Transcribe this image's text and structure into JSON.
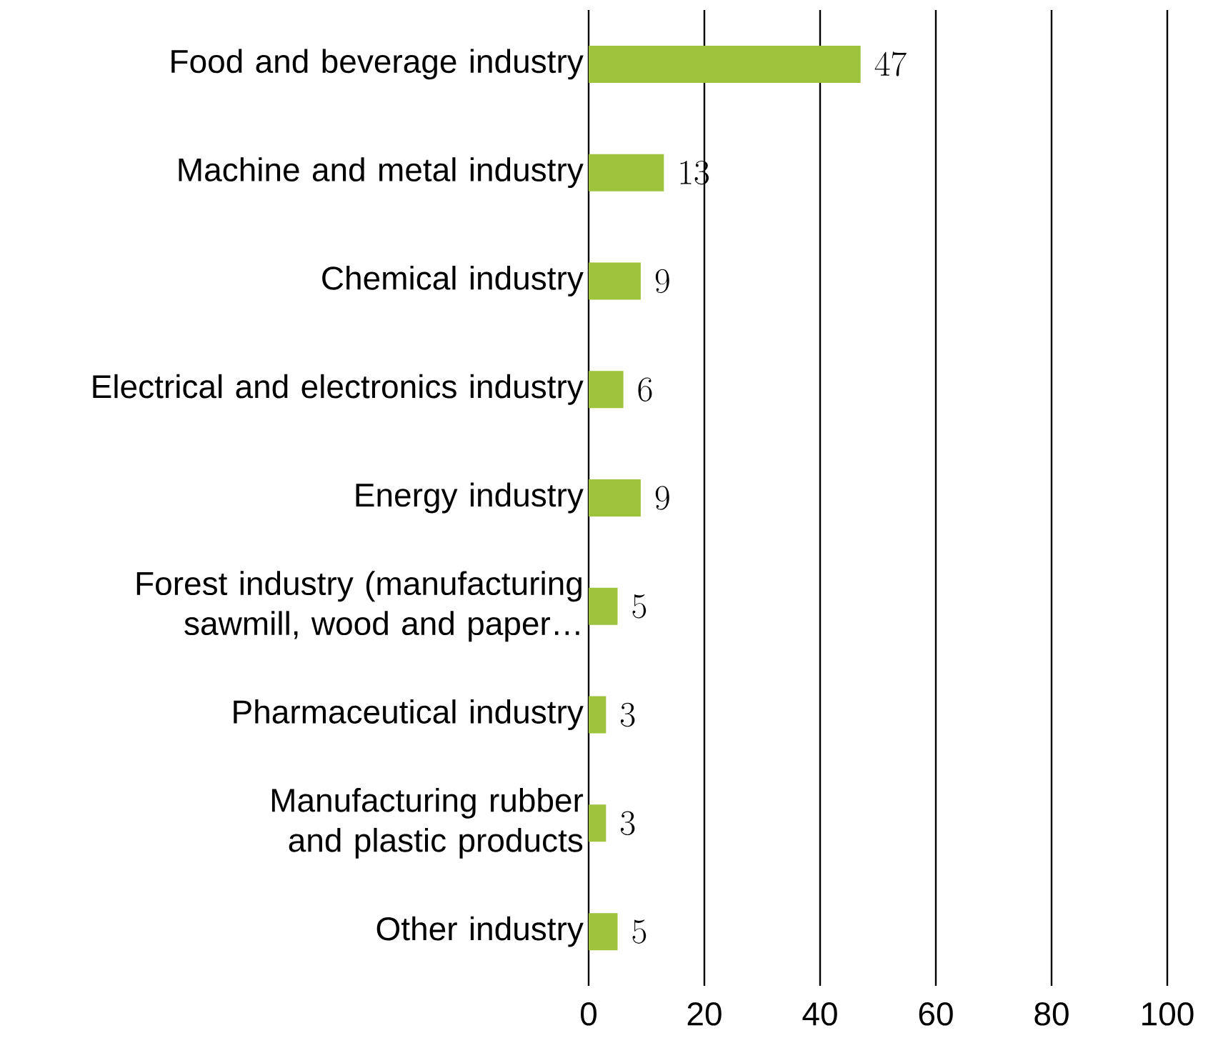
{
  "chart_data": {
    "type": "bar",
    "orientation": "horizontal",
    "categories": [
      "Food and beverage industry",
      "Machine and metal industry",
      "Chemical industry",
      "Electrical and electronics industry",
      "Energy industry",
      "Forest industry (manufacturing sawmill, wood and paper…",
      "Pharmaceutical industry",
      "Manufacturing rubber and plastic products",
      "Other industry"
    ],
    "values": [
      47,
      13,
      9,
      6,
      9,
      5,
      3,
      3,
      5
    ],
    "color": "#9dc23b",
    "xlim": [
      0,
      100
    ],
    "xticks": [
      0,
      20,
      40,
      60,
      80,
      100
    ],
    "grid": "x",
    "data_labels": true
  }
}
